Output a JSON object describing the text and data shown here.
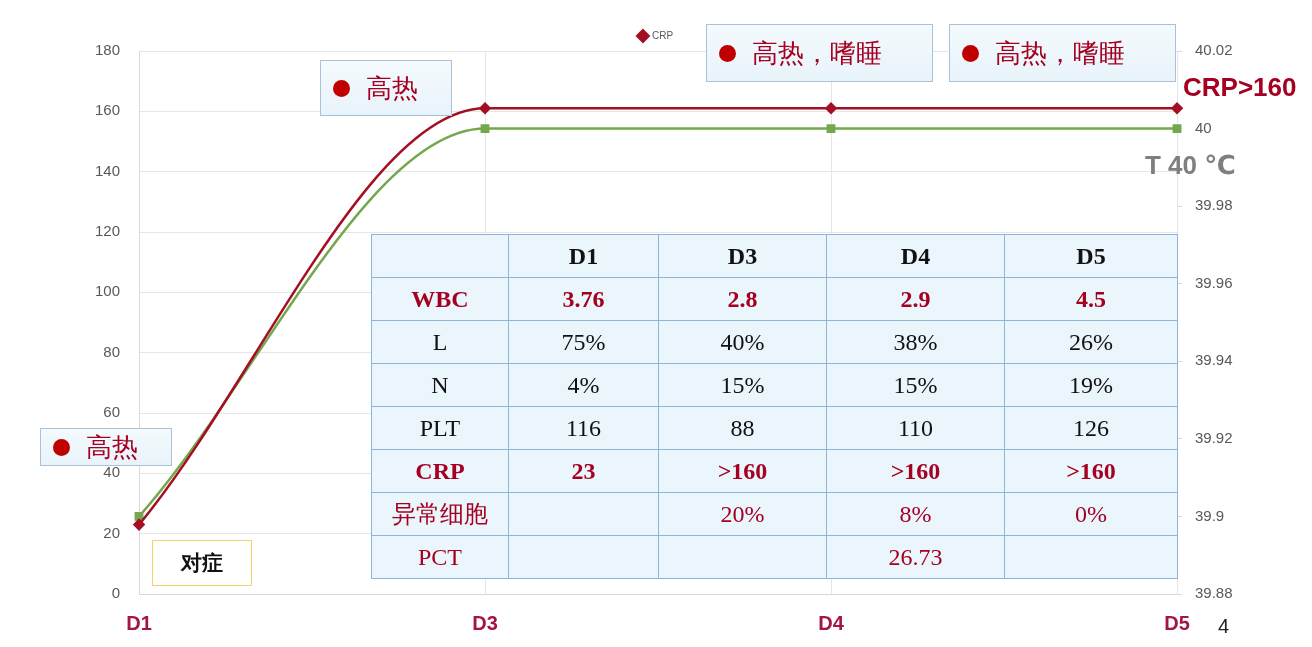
{
  "chart_data": [
    {
      "type": "line",
      "categories": [
        "D1",
        "D3",
        "D4",
        "D5"
      ],
      "series": [
        {
          "name": "CRP",
          "color": "#a50f23",
          "marker": "diamond",
          "values": [
            23,
            161,
            161,
            161
          ]
        },
        {
          "color": "#74a84f",
          "marker": "square",
          "axis": "y2",
          "values": [
            39.9,
            40,
            40,
            40
          ]
        }
      ],
      "ylim": [
        0,
        180
      ],
      "yticks": [
        0,
        20,
        40,
        60,
        80,
        100,
        120,
        140,
        160,
        180
      ],
      "y2lim": [
        39.88,
        40.02
      ],
      "y2ticks": [
        39.88,
        39.9,
        39.92,
        39.94,
        39.96,
        39.98,
        40,
        40.02
      ],
      "grid": true,
      "legend": "top",
      "annotations": [
        "高热",
        "高热，嗜睡",
        "高热，嗜睡",
        "CRP>160",
        "T 40 ℃",
        "高热",
        "对症",
        "4"
      ]
    },
    {
      "type": "other",
      "categories": [
        "D1",
        "D3",
        "D4",
        "D5"
      ],
      "y_categories": [
        "WBC",
        "L",
        "N",
        "PLT",
        "CRP",
        "异常细胞",
        "PCT"
      ],
      "cell_labels": [
        [
          "3.76",
          "2.8",
          "2.9",
          "4.5"
        ],
        [
          "75%",
          "40%",
          "38%",
          "26%"
        ],
        [
          "4%",
          "15%",
          "15%",
          "19%"
        ],
        [
          "116",
          "88",
          "110",
          "126"
        ],
        [
          "23",
          ">160",
          ">160",
          ">160"
        ],
        [
          null,
          "20%",
          "8%",
          "0%"
        ],
        [
          null,
          null,
          "26.73",
          null
        ]
      ]
    }
  ]
}
